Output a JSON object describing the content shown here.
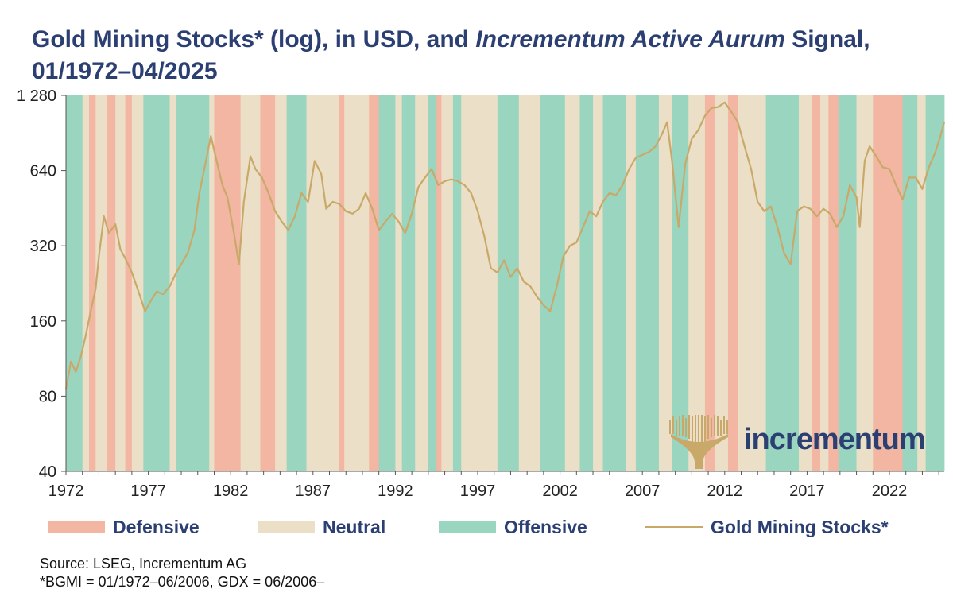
{
  "title": {
    "part1": "Gold Mining Stocks* (log), in USD, and ",
    "part2_italic": "Incrementum Active Aurum",
    "part3": " Signal, 01/1972–04/2025"
  },
  "colors": {
    "defensive": "#f2b6a2",
    "neutral": "#ebdfc7",
    "offensive": "#9ad5c0",
    "line": "#c9a96a",
    "title": "#2b3f73"
  },
  "legend": {
    "defensive": "Defensive",
    "neutral": "Neutral",
    "offensive": "Offensive",
    "series": "Gold Mining Stocks*"
  },
  "source": {
    "line1": "Source: LSEG, Incrementum AG",
    "line2": "*BGMI = 01/1972–06/2006, GDX = 06/2006–"
  },
  "logo": {
    "text": "incrementum",
    "icon": "tree-icon"
  },
  "chart_data": {
    "type": "line",
    "title": "Gold Mining Stocks* (log), in USD, and Incrementum Active Aurum Signal, 01/1972–04/2025",
    "xlabel": "",
    "ylabel": "",
    "y_scale": "log2",
    "ylim": [
      40,
      1280
    ],
    "xlim": [
      1972.0,
      2025.33
    ],
    "y_ticks": [
      40,
      80,
      160,
      320,
      640,
      1280
    ],
    "y_tick_labels": [
      "40",
      "80",
      "160",
      "320",
      "640",
      "1 280"
    ],
    "x_ticks": [
      1972,
      1977,
      1982,
      1987,
      1992,
      1997,
      2002,
      2007,
      2012,
      2017,
      2022
    ],
    "x_tick_labels": [
      "1972",
      "1977",
      "1982",
      "1987",
      "1992",
      "1997",
      "2002",
      "2007",
      "2012",
      "2017",
      "2022"
    ],
    "signal_regimes": [
      {
        "start": 1972.0,
        "end": 1973.0,
        "regime": "offensive"
      },
      {
        "start": 1973.0,
        "end": 1973.4,
        "regime": "neutral"
      },
      {
        "start": 1973.4,
        "end": 1973.8,
        "regime": "defensive"
      },
      {
        "start": 1973.8,
        "end": 1974.5,
        "regime": "neutral"
      },
      {
        "start": 1974.5,
        "end": 1975.0,
        "regime": "defensive"
      },
      {
        "start": 1975.0,
        "end": 1975.6,
        "regime": "neutral"
      },
      {
        "start": 1975.6,
        "end": 1976.0,
        "regime": "defensive"
      },
      {
        "start": 1976.0,
        "end": 1976.7,
        "regime": "neutral"
      },
      {
        "start": 1976.7,
        "end": 1978.3,
        "regime": "offensive"
      },
      {
        "start": 1978.3,
        "end": 1978.7,
        "regime": "neutral"
      },
      {
        "start": 1978.7,
        "end": 1980.7,
        "regime": "offensive"
      },
      {
        "start": 1980.7,
        "end": 1981.0,
        "regime": "neutral"
      },
      {
        "start": 1981.0,
        "end": 1982.6,
        "regime": "defensive"
      },
      {
        "start": 1982.6,
        "end": 1983.8,
        "regime": "neutral"
      },
      {
        "start": 1983.8,
        "end": 1984.7,
        "regime": "defensive"
      },
      {
        "start": 1984.7,
        "end": 1985.4,
        "regime": "neutral"
      },
      {
        "start": 1985.4,
        "end": 1986.6,
        "regime": "offensive"
      },
      {
        "start": 1986.6,
        "end": 1988.6,
        "regime": "neutral"
      },
      {
        "start": 1988.6,
        "end": 1988.9,
        "regime": "defensive"
      },
      {
        "start": 1988.9,
        "end": 1990.4,
        "regime": "neutral"
      },
      {
        "start": 1990.4,
        "end": 1991.0,
        "regime": "defensive"
      },
      {
        "start": 1991.0,
        "end": 1992.0,
        "regime": "offensive"
      },
      {
        "start": 1992.0,
        "end": 1992.4,
        "regime": "neutral"
      },
      {
        "start": 1992.4,
        "end": 1993.2,
        "regime": "offensive"
      },
      {
        "start": 1993.2,
        "end": 1994.0,
        "regime": "neutral"
      },
      {
        "start": 1994.0,
        "end": 1994.5,
        "regime": "offensive"
      },
      {
        "start": 1994.5,
        "end": 1994.8,
        "regime": "defensive"
      },
      {
        "start": 1994.8,
        "end": 1995.5,
        "regime": "neutral"
      },
      {
        "start": 1995.5,
        "end": 1996.0,
        "regime": "offensive"
      },
      {
        "start": 1996.0,
        "end": 1998.2,
        "regime": "neutral"
      },
      {
        "start": 1998.2,
        "end": 1999.5,
        "regime": "offensive"
      },
      {
        "start": 1999.5,
        "end": 2000.8,
        "regime": "neutral"
      },
      {
        "start": 2000.8,
        "end": 2002.3,
        "regime": "offensive"
      },
      {
        "start": 2002.3,
        "end": 2003.2,
        "regime": "neutral"
      },
      {
        "start": 2003.2,
        "end": 2004.0,
        "regime": "offensive"
      },
      {
        "start": 2004.0,
        "end": 2004.6,
        "regime": "neutral"
      },
      {
        "start": 2004.6,
        "end": 2006.0,
        "regime": "offensive"
      },
      {
        "start": 2006.0,
        "end": 2006.6,
        "regime": "neutral"
      },
      {
        "start": 2006.6,
        "end": 2008.0,
        "regime": "offensive"
      },
      {
        "start": 2008.0,
        "end": 2008.8,
        "regime": "neutral"
      },
      {
        "start": 2008.8,
        "end": 2009.8,
        "regime": "offensive"
      },
      {
        "start": 2009.8,
        "end": 2010.8,
        "regime": "neutral"
      },
      {
        "start": 2010.8,
        "end": 2011.4,
        "regime": "defensive"
      },
      {
        "start": 2011.4,
        "end": 2012.2,
        "regime": "neutral"
      },
      {
        "start": 2012.2,
        "end": 2012.8,
        "regime": "defensive"
      },
      {
        "start": 2012.8,
        "end": 2014.5,
        "regime": "neutral"
      },
      {
        "start": 2014.5,
        "end": 2016.5,
        "regime": "offensive"
      },
      {
        "start": 2016.5,
        "end": 2017.3,
        "regime": "neutral"
      },
      {
        "start": 2017.3,
        "end": 2017.8,
        "regime": "defensive"
      },
      {
        "start": 2017.8,
        "end": 2018.3,
        "regime": "neutral"
      },
      {
        "start": 2018.3,
        "end": 2018.9,
        "regime": "defensive"
      },
      {
        "start": 2018.9,
        "end": 2020.0,
        "regime": "offensive"
      },
      {
        "start": 2020.0,
        "end": 2021.0,
        "regime": "neutral"
      },
      {
        "start": 2021.0,
        "end": 2022.8,
        "regime": "defensive"
      },
      {
        "start": 2022.8,
        "end": 2023.7,
        "regime": "offensive"
      },
      {
        "start": 2023.7,
        "end": 2024.2,
        "regime": "neutral"
      },
      {
        "start": 2024.2,
        "end": 2025.33,
        "regime": "offensive"
      }
    ],
    "series": [
      {
        "name": "Gold Mining Stocks*",
        "x": [
          1972.0,
          1972.3,
          1972.6,
          1972.9,
          1973.2,
          1973.5,
          1973.8,
          1974.0,
          1974.3,
          1974.6,
          1975.0,
          1975.3,
          1975.6,
          1976.0,
          1976.4,
          1976.8,
          1977.1,
          1977.5,
          1977.9,
          1978.3,
          1978.7,
          1979.0,
          1979.4,
          1979.8,
          1980.1,
          1980.5,
          1980.8,
          1981.1,
          1981.5,
          1981.8,
          1982.2,
          1982.5,
          1982.8,
          1983.2,
          1983.5,
          1983.9,
          1984.3,
          1984.7,
          1985.1,
          1985.5,
          1985.9,
          1986.3,
          1986.7,
          1987.1,
          1987.5,
          1987.8,
          1988.2,
          1988.6,
          1989.0,
          1989.4,
          1989.8,
          1990.2,
          1990.6,
          1991.0,
          1991.4,
          1991.8,
          1992.2,
          1992.6,
          1993.0,
          1993.4,
          1993.8,
          1994.2,
          1994.6,
          1995.0,
          1995.4,
          1995.8,
          1996.2,
          1996.6,
          1997.0,
          1997.4,
          1997.8,
          1998.2,
          1998.6,
          1999.0,
          1999.4,
          1999.8,
          2000.2,
          2000.6,
          2001.0,
          2001.4,
          2001.8,
          2002.2,
          2002.6,
          2003.0,
          2003.4,
          2003.8,
          2004.2,
          2004.6,
          2005.0,
          2005.4,
          2005.8,
          2006.2,
          2006.6,
          2007.0,
          2007.4,
          2007.8,
          2008.2,
          2008.5,
          2008.8,
          2009.2,
          2009.6,
          2010.0,
          2010.4,
          2010.8,
          2011.2,
          2011.6,
          2012.0,
          2012.4,
          2012.8,
          2013.2,
          2013.6,
          2014.0,
          2014.4,
          2014.8,
          2015.2,
          2015.6,
          2016.0,
          2016.4,
          2016.8,
          2017.2,
          2017.6,
          2018.0,
          2018.4,
          2018.8,
          2019.2,
          2019.6,
          2020.0,
          2020.2,
          2020.5,
          2020.8,
          2021.2,
          2021.6,
          2022.0,
          2022.4,
          2022.8,
          2023.2,
          2023.6,
          2024.0,
          2024.4,
          2024.8,
          2025.1,
          2025.33
        ],
        "values": [
          85,
          110,
          100,
          115,
          140,
          175,
          215,
          290,
          420,
          360,
          390,
          310,
          285,
          250,
          210,
          175,
          190,
          210,
          205,
          220,
          250,
          270,
          300,
          370,
          520,
          700,
          880,
          720,
          560,
          500,
          360,
          270,
          480,
          730,
          650,
          600,
          520,
          440,
          400,
          370,
          420,
          520,
          480,
          700,
          620,
          450,
          480,
          470,
          440,
          430,
          450,
          520,
          450,
          370,
          400,
          430,
          400,
          360,
          430,
          550,
          600,
          650,
          560,
          580,
          590,
          580,
          560,
          520,
          440,
          350,
          260,
          250,
          280,
          240,
          260,
          230,
          220,
          200,
          185,
          175,
          220,
          290,
          320,
          330,
          380,
          440,
          420,
          480,
          520,
          510,
          560,
          650,
          720,
          740,
          760,
          800,
          900,
          1000,
          700,
          380,
          680,
          860,
          930,
          1060,
          1140,
          1150,
          1200,
          1100,
          1000,
          800,
          650,
          480,
          440,
          460,
          380,
          300,
          270,
          440,
          460,
          450,
          420,
          450,
          430,
          380,
          420,
          560,
          500,
          380,
          700,
          800,
          730,
          660,
          650,
          560,
          490,
          600,
          600,
          540,
          660,
          760,
          880,
          1000
        ]
      }
    ]
  }
}
